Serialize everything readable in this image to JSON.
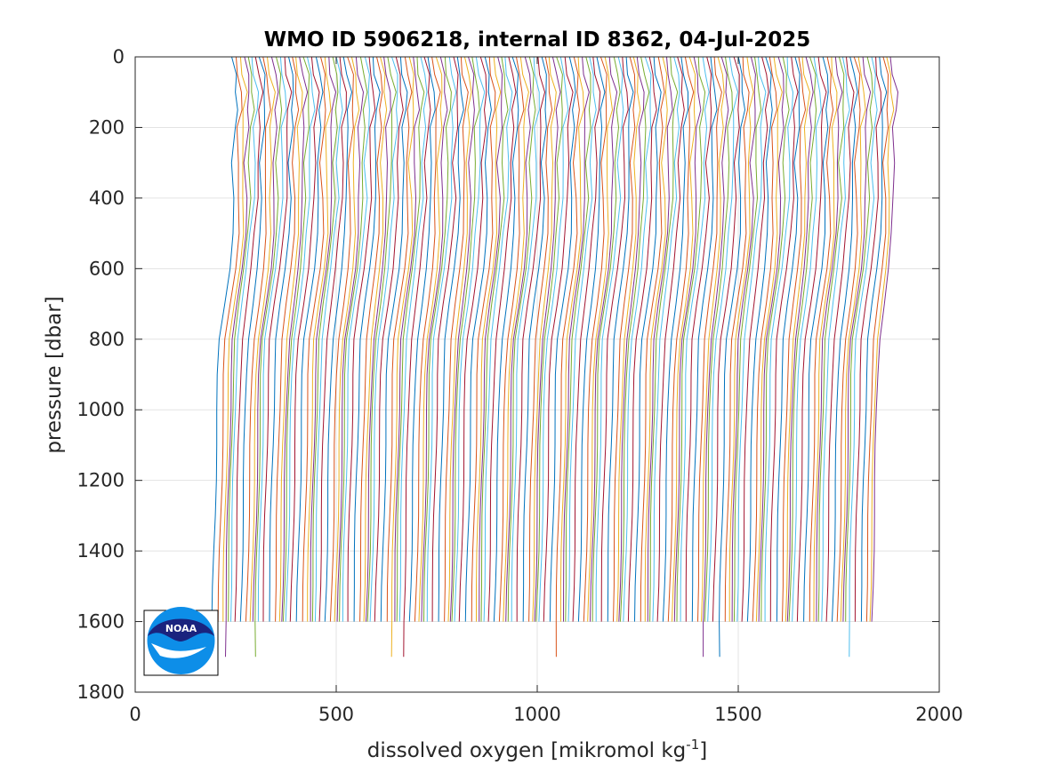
{
  "chart_data": {
    "type": "line",
    "title": "WMO ID 5906218, internal ID 8362, 04-Jul-2025",
    "xlabel": "dissolved oxygen [mikromol kg",
    "xlabel_superscript": "-1",
    "xlabel_suffix": "]",
    "ylabel": "pressure [dbar]",
    "xlim": [
      0,
      2000
    ],
    "ylim": [
      0,
      1800
    ],
    "y_reversed": true,
    "grid": true,
    "x_ticks": [
      "0",
      "500",
      "1000",
      "1500",
      "2000"
    ],
    "y_ticks": [
      "0",
      "200",
      "400",
      "600",
      "800",
      "1000",
      "1200",
      "1400",
      "1600",
      "1800"
    ],
    "series_count": 165,
    "offset_per_profile": 10,
    "first_profile_surface_value": 240,
    "profile_shape": {
      "pressure": [
        0,
        50,
        100,
        150,
        200,
        300,
        400,
        500,
        600,
        700,
        800,
        900,
        1000,
        1100,
        1200,
        1300,
        1400,
        1500,
        1600
      ],
      "oxygen_anomaly": [
        0,
        8,
        14,
        12,
        8,
        4,
        6,
        2,
        -6,
        -18,
        -30,
        -34,
        -36,
        -38,
        -40,
        -42,
        -44,
        -46,
        -48
      ]
    },
    "series_colors": [
      "#0072BD",
      "#D95319",
      "#EDB120",
      "#7E2F8E",
      "#77AC30",
      "#4DBEEE",
      "#A2142F"
    ],
    "logo": "NOAA"
  }
}
